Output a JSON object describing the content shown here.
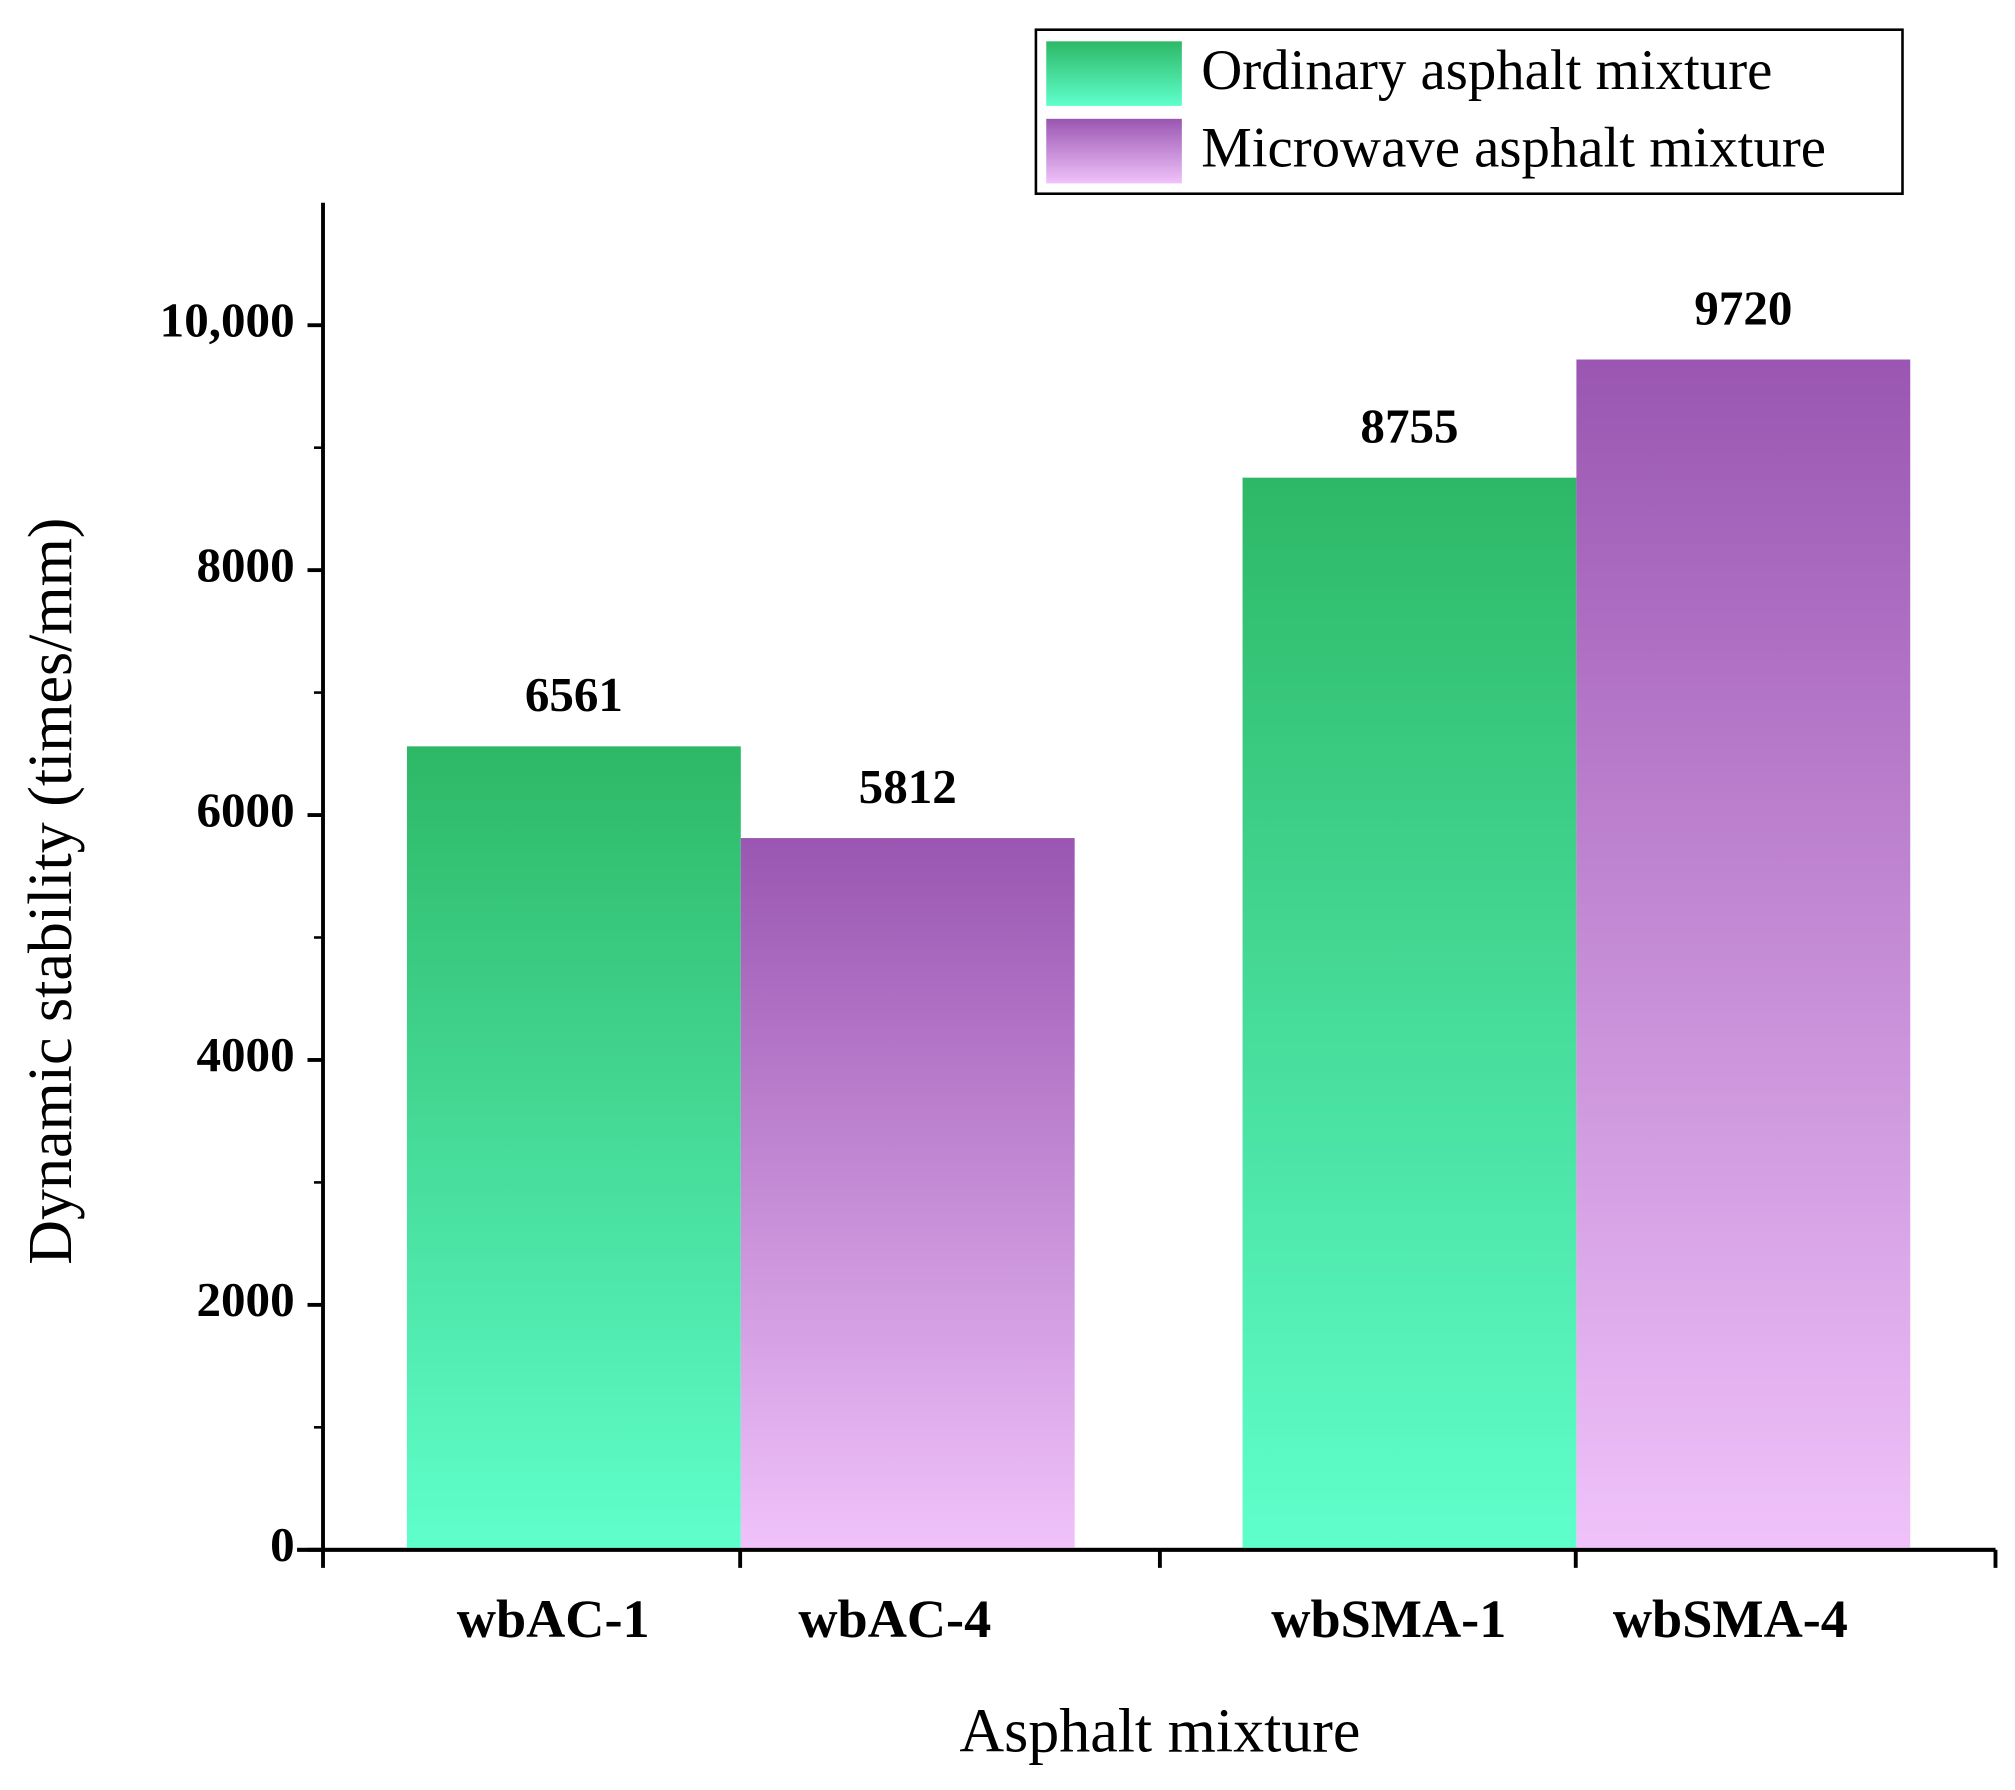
{
  "chart_data": {
    "type": "bar",
    "x_label": "Asphalt mixture",
    "y_label": "Dynamic stability (times/mm)",
    "categories": [
      "wbAC-1",
      "wbAC-4",
      "wbSMA-1",
      "wbSMA-4"
    ],
    "series": [
      {
        "name": "Ordinary asphalt mixture",
        "color": "#2db866",
        "values": [
          6561,
          null,
          8755,
          null
        ]
      },
      {
        "name": "Microwave asphalt mixture",
        "color": "#9a56b2",
        "values": [
          null,
          5812,
          null,
          9720
        ]
      }
    ],
    "ylim": [
      0,
      11000
    ],
    "yticks": [
      0,
      2000,
      4000,
      6000,
      8000,
      {
        "value": 10000,
        "label": "10,000"
      }
    ],
    "legend": "top-right"
  }
}
